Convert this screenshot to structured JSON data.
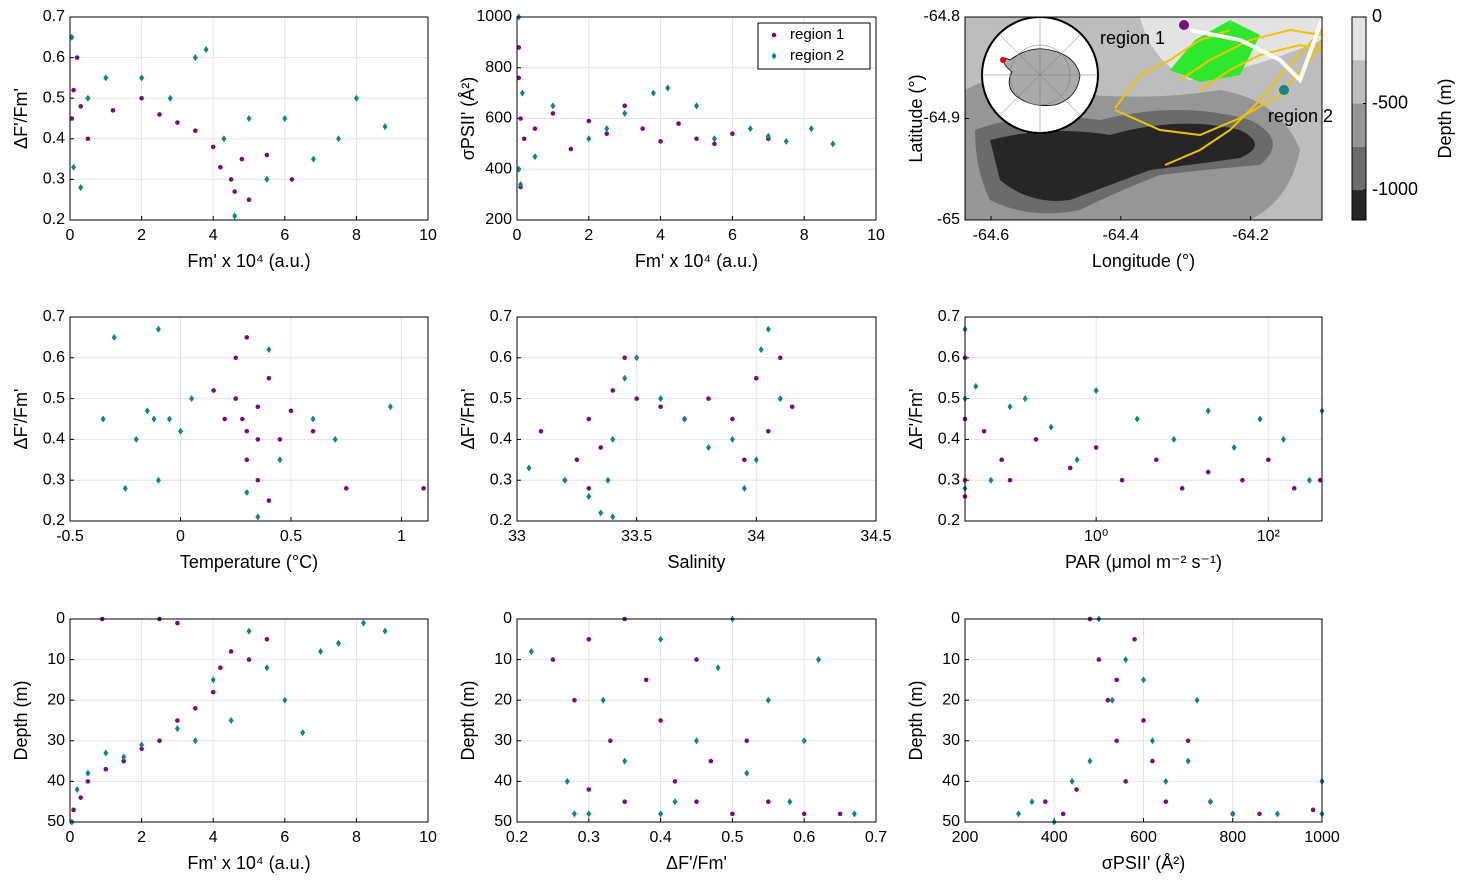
{
  "chart_data": [
    {
      "type": "scatter",
      "xlabel": "Fm' x 10⁴ (a.u.)",
      "ylabel": "ΔF'/Fm'",
      "xlim": [
        0,
        10
      ],
      "ylim": [
        0.2,
        0.7
      ],
      "xticks": [
        0,
        2,
        4,
        6,
        8,
        10
      ],
      "yticks": [
        0.2,
        0.3,
        0.4,
        0.5,
        0.6,
        0.7
      ],
      "grid": true,
      "series": [
        {
          "name": "region 1",
          "color": "#7b0c7e",
          "marker": "circle",
          "x": [
            0.05,
            0.1,
            0.3,
            0.5,
            1.2,
            2,
            2.5,
            3,
            3.5,
            4,
            4.2,
            4.5,
            4.6,
            4.8,
            5,
            5.5,
            6.2,
            0.2
          ],
          "y": [
            0.45,
            0.52,
            0.48,
            0.4,
            0.47,
            0.5,
            0.46,
            0.44,
            0.42,
            0.38,
            0.33,
            0.3,
            0.27,
            0.35,
            0.25,
            0.36,
            0.3,
            0.6
          ]
        },
        {
          "name": "region 2",
          "color": "#0f8585",
          "marker": "diamond",
          "x": [
            0.05,
            0.1,
            0.5,
            1,
            2,
            2.8,
            3.5,
            3.8,
            4.3,
            5,
            5.5,
            6,
            6.8,
            7.5,
            8,
            8.8,
            0.3,
            4.6
          ],
          "y": [
            0.65,
            0.33,
            0.5,
            0.55,
            0.55,
            0.5,
            0.6,
            0.62,
            0.4,
            0.45,
            0.3,
            0.45,
            0.35,
            0.4,
            0.5,
            0.43,
            0.28,
            0.21
          ]
        }
      ]
    },
    {
      "type": "scatter",
      "xlabel": "Fm' x 10⁴ (a.u.)",
      "ylabel": "σPSII' (Å²)",
      "xlim": [
        0,
        10
      ],
      "ylim": [
        200,
        1000
      ],
      "xticks": [
        0,
        2,
        4,
        6,
        8,
        10
      ],
      "yticks": [
        200,
        400,
        600,
        800,
        1000
      ],
      "grid": true,
      "legend": "upper right",
      "series": [
        {
          "name": "region 1",
          "color": "#7b0c7e",
          "marker": "circle",
          "x": [
            0.05,
            0.1,
            0.1,
            0.2,
            0.5,
            1,
            1.5,
            2,
            2.5,
            3,
            3.5,
            4,
            4.5,
            5,
            5.5,
            6,
            7,
            0.05
          ],
          "y": [
            880,
            330,
            600,
            520,
            560,
            620,
            480,
            590,
            540,
            650,
            560,
            510,
            580,
            520,
            500,
            540,
            520,
            760
          ]
        },
        {
          "name": "region 2",
          "color": "#0f8585",
          "marker": "diamond",
          "x": [
            0.05,
            0.1,
            0.15,
            0.5,
            1,
            2,
            2.5,
            3,
            3.8,
            4.2,
            5,
            5.5,
            6.5,
            7,
            7.5,
            8.2,
            8.8,
            0.05
          ],
          "y": [
            1000,
            340,
            700,
            450,
            650,
            520,
            560,
            620,
            700,
            720,
            650,
            520,
            560,
            530,
            510,
            560,
            500,
            400
          ]
        }
      ]
    },
    {
      "type": "map",
      "xlabel": "Longitude (°)",
      "ylabel": "Latitude (°)",
      "xlim": [
        -64.64,
        -64.09
      ],
      "ylim": [
        -65,
        -64.8
      ],
      "xticks": [
        -64.6,
        -64.4,
        -64.2
      ],
      "yticks": [
        -65,
        -64.9,
        -64.8
      ],
      "colorbar_label": "Depth (m)",
      "clim": [
        -1173,
        0
      ],
      "cticks": [
        0,
        -500,
        -1000
      ],
      "levels": [
        0,
        -250,
        -500,
        -750,
        -1000,
        -1173
      ],
      "level_colors": [
        "#e3e3e3",
        "#bdbdbd",
        "#969696",
        "#6b6b6b",
        "#262626"
      ],
      "annotations": [
        {
          "text": "region 1",
          "color": "#7b0c7e"
        },
        {
          "text": "region 2",
          "color": "#0f8585"
        }
      ]
    },
    {
      "type": "scatter",
      "xlabel": "Temperature (°C)",
      "ylabel": "ΔF'/Fm'",
      "xlim": [
        -0.5,
        1.12
      ],
      "ylim": [
        0.2,
        0.7
      ],
      "xticks": [
        -0.5,
        0,
        0.5,
        1
      ],
      "yticks": [
        0.2,
        0.3,
        0.4,
        0.5,
        0.6,
        0.7
      ],
      "grid": true,
      "series": [
        {
          "name": "region 1",
          "color": "#7b0c7e",
          "marker": "circle",
          "x": [
            0.2,
            0.25,
            0.3,
            0.3,
            0.35,
            0.35,
            0.4,
            0.25,
            0.3,
            0.45,
            0.5,
            0.6,
            0.4,
            0.15,
            0.75,
            1.1,
            0.35,
            0.28
          ],
          "y": [
            0.45,
            0.5,
            0.42,
            0.35,
            0.48,
            0.3,
            0.55,
            0.6,
            0.65,
            0.4,
            0.47,
            0.42,
            0.25,
            0.52,
            0.28,
            0.28,
            0.4,
            0.45
          ]
        },
        {
          "name": "region 2",
          "color": "#0f8585",
          "marker": "diamond",
          "x": [
            -0.35,
            -0.3,
            -0.2,
            -0.15,
            -0.1,
            -0.05,
            0,
            0.05,
            -0.1,
            -0.25,
            0.3,
            0.4,
            0.45,
            0.6,
            0.7,
            0.95,
            -0.12,
            0.35
          ],
          "y": [
            0.45,
            0.65,
            0.4,
            0.47,
            0.67,
            0.45,
            0.42,
            0.5,
            0.3,
            0.28,
            0.27,
            0.62,
            0.35,
            0.45,
            0.4,
            0.48,
            0.45,
            0.21
          ]
        }
      ]
    },
    {
      "type": "scatter",
      "xlabel": "Salinity",
      "ylabel": "ΔF'/Fm'",
      "xlim": [
        33,
        34.5
      ],
      "ylim": [
        0.2,
        0.7
      ],
      "xticks": [
        33,
        33.5,
        34,
        34.5
      ],
      "yticks": [
        0.2,
        0.3,
        0.4,
        0.5,
        0.6,
        0.7
      ],
      "grid": true,
      "series": [
        {
          "name": "region 1",
          "color": "#7b0c7e",
          "marker": "circle",
          "x": [
            33.1,
            33.2,
            33.25,
            33.3,
            33.3,
            33.35,
            33.4,
            33.5,
            33.6,
            33.7,
            33.8,
            33.9,
            34,
            34.05,
            34.1,
            34.15,
            33.45,
            33.95
          ],
          "y": [
            0.42,
            0.3,
            0.35,
            0.28,
            0.45,
            0.38,
            0.52,
            0.5,
            0.48,
            0.45,
            0.5,
            0.45,
            0.55,
            0.42,
            0.6,
            0.48,
            0.6,
            0.35
          ]
        },
        {
          "name": "region 2",
          "color": "#0f8585",
          "marker": "diamond",
          "x": [
            33.05,
            33.2,
            33.3,
            33.35,
            33.38,
            33.4,
            33.45,
            33.5,
            33.6,
            33.7,
            33.8,
            33.9,
            33.95,
            34,
            34.05,
            34.1,
            33.4,
            34.02
          ],
          "y": [
            0.33,
            0.3,
            0.26,
            0.22,
            0.3,
            0.4,
            0.55,
            0.6,
            0.5,
            0.45,
            0.38,
            0.4,
            0.28,
            0.35,
            0.67,
            0.5,
            0.21,
            0.62
          ]
        }
      ]
    },
    {
      "type": "scatter",
      "xlabel": "PAR (μmol m⁻² s⁻¹)",
      "ylabel": "ΔF'/Fm'",
      "xlim": [
        0.03,
        420
      ],
      "ylim": [
        0.2,
        0.7
      ],
      "xscale": "log",
      "xticks": [
        {
          "value": 1,
          "label": "10⁰"
        },
        {
          "value": 100,
          "label": "10²"
        }
      ],
      "yticks": [
        0.2,
        0.3,
        0.4,
        0.5,
        0.6,
        0.7
      ],
      "grid": true,
      "series": [
        {
          "name": "region 1",
          "color": "#7b0c7e",
          "marker": "circle",
          "x": [
            0.03,
            0.03,
            0.03,
            0.05,
            0.08,
            0.1,
            0.2,
            0.5,
            1,
            2,
            5,
            10,
            20,
            50,
            100,
            200,
            400,
            0.03
          ],
          "y": [
            0.6,
            0.3,
            0.45,
            0.42,
            0.35,
            0.3,
            0.4,
            0.33,
            0.38,
            0.3,
            0.35,
            0.28,
            0.32,
            0.3,
            0.35,
            0.28,
            0.3,
            0.26
          ]
        },
        {
          "name": "region 2",
          "color": "#0f8585",
          "marker": "diamond",
          "x": [
            0.03,
            0.03,
            0.04,
            0.06,
            0.1,
            0.15,
            0.3,
            0.6,
            1,
            3,
            8,
            20,
            40,
            80,
            150,
            300,
            420,
            0.03
          ],
          "y": [
            0.67,
            0.5,
            0.53,
            0.3,
            0.48,
            0.5,
            0.43,
            0.35,
            0.52,
            0.45,
            0.4,
            0.47,
            0.38,
            0.45,
            0.4,
            0.3,
            0.47,
            0.28
          ]
        }
      ]
    },
    {
      "type": "scatter",
      "xlabel": "Fm' x 10⁴ (a.u.)",
      "ylabel": "Depth (m)",
      "xlim": [
        0,
        10
      ],
      "ylim": [
        0,
        50
      ],
      "yreverse": true,
      "xticks": [
        0,
        2,
        4,
        6,
        8,
        10
      ],
      "yticks": [
        0,
        10,
        20,
        30,
        40,
        50
      ],
      "grid": true,
      "series": [
        {
          "name": "region 1",
          "color": "#7b0c7e",
          "marker": "circle",
          "x": [
            0.05,
            0.1,
            0.3,
            0.5,
            1,
            1.5,
            2,
            2.5,
            3,
            3.5,
            4,
            4.2,
            4.5,
            5,
            5.5,
            0.9,
            2.5,
            3
          ],
          "y": [
            50,
            47,
            44,
            40,
            37,
            35,
            32,
            30,
            25,
            22,
            18,
            12,
            8,
            10,
            5,
            0,
            0,
            1
          ]
        },
        {
          "name": "region 2",
          "color": "#0f8585",
          "marker": "diamond",
          "x": [
            0.05,
            0.2,
            0.5,
            1,
            1.5,
            2,
            3,
            3.5,
            4,
            4.5,
            5,
            5.5,
            6,
            6.5,
            7,
            7.5,
            8.2,
            8.8
          ],
          "y": [
            50,
            42,
            38,
            33,
            34,
            31,
            27,
            30,
            15,
            25,
            3,
            12,
            20,
            28,
            8,
            6,
            1,
            3
          ]
        }
      ]
    },
    {
      "type": "scatter",
      "xlabel": "ΔF'/Fm'",
      "ylabel": "Depth (m)",
      "xlim": [
        0.2,
        0.7
      ],
      "ylim": [
        0,
        50
      ],
      "yreverse": true,
      "xticks": [
        0.2,
        0.3,
        0.4,
        0.5,
        0.6,
        0.7
      ],
      "yticks": [
        0,
        10,
        20,
        30,
        40,
        50
      ],
      "grid": true,
      "series": [
        {
          "name": "region 1",
          "color": "#7b0c7e",
          "marker": "circle",
          "x": [
            0.25,
            0.28,
            0.3,
            0.33,
            0.35,
            0.38,
            0.4,
            0.42,
            0.45,
            0.47,
            0.5,
            0.52,
            0.55,
            0.6,
            0.65,
            0.35,
            0.45,
            0.3
          ],
          "y": [
            10,
            20,
            5,
            30,
            0,
            15,
            25,
            40,
            45,
            35,
            48,
            30,
            45,
            48,
            48,
            45,
            10,
            42
          ]
        },
        {
          "name": "region 2",
          "color": "#0f8585",
          "marker": "diamond",
          "x": [
            0.22,
            0.27,
            0.3,
            0.32,
            0.35,
            0.4,
            0.42,
            0.45,
            0.48,
            0.5,
            0.52,
            0.55,
            0.58,
            0.6,
            0.62,
            0.67,
            0.28,
            0.4
          ],
          "y": [
            8,
            40,
            48,
            20,
            35,
            5,
            45,
            30,
            12,
            0,
            38,
            20,
            45,
            30,
            10,
            48,
            48,
            48
          ]
        }
      ]
    },
    {
      "type": "scatter",
      "xlabel": "σPSII' (Å²)",
      "ylabel": "Depth (m)",
      "xlim": [
        200,
        1000
      ],
      "ylim": [
        0,
        50
      ],
      "yreverse": true,
      "xticks": [
        200,
        400,
        600,
        800,
        1000
      ],
      "yticks": [
        0,
        10,
        20,
        30,
        40,
        50
      ],
      "grid": true,
      "series": [
        {
          "name": "region 1",
          "color": "#7b0c7e",
          "marker": "circle",
          "x": [
            380,
            420,
            450,
            480,
            500,
            520,
            540,
            560,
            580,
            600,
            620,
            650,
            700,
            750,
            800,
            980,
            860,
            540
          ],
          "y": [
            45,
            48,
            42,
            0,
            10,
            20,
            30,
            40,
            5,
            25,
            35,
            45,
            30,
            45,
            48,
            47,
            48,
            15
          ]
        },
        {
          "name": "region 2",
          "color": "#0f8585",
          "marker": "diamond",
          "x": [
            320,
            350,
            400,
            440,
            480,
            500,
            530,
            560,
            600,
            620,
            650,
            700,
            720,
            750,
            800,
            900,
            1000,
            1000
          ],
          "y": [
            48,
            45,
            50,
            40,
            35,
            0,
            20,
            10,
            15,
            30,
            40,
            35,
            20,
            45,
            48,
            48,
            40,
            48
          ]
        }
      ]
    }
  ]
}
